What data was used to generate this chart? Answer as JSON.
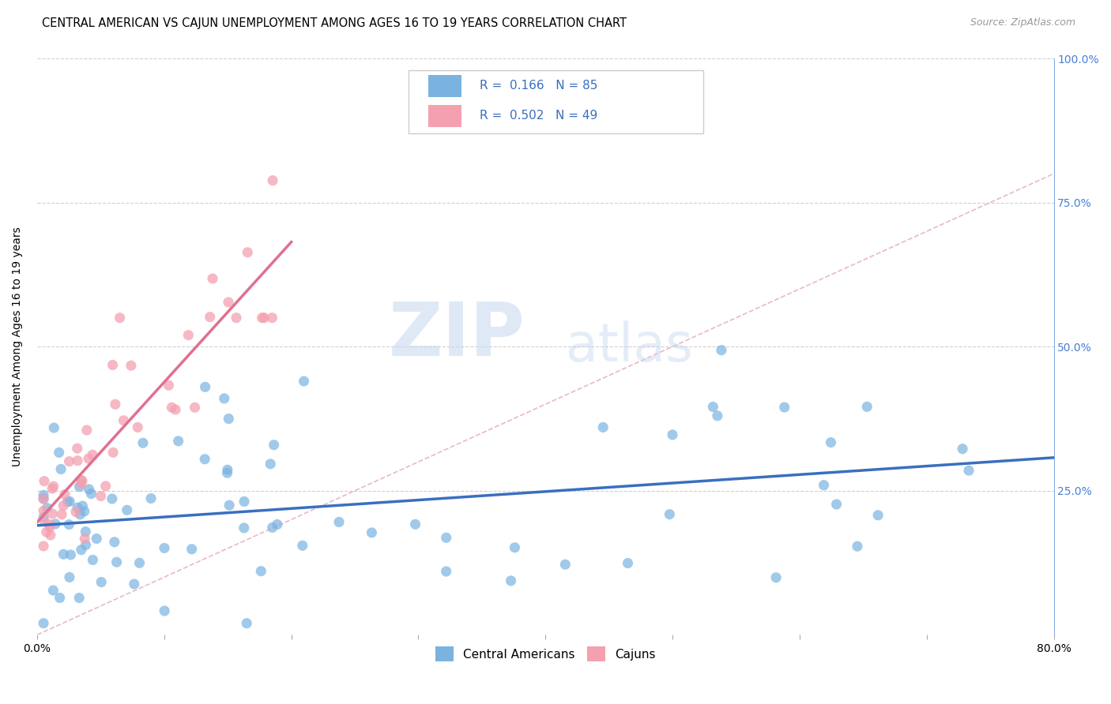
{
  "title": "CENTRAL AMERICAN VS CAJUN UNEMPLOYMENT AMONG AGES 16 TO 19 YEARS CORRELATION CHART",
  "source": "Source: ZipAtlas.com",
  "ylabel": "Unemployment Among Ages 16 to 19 years",
  "xlim": [
    0.0,
    0.8
  ],
  "ylim": [
    0.0,
    1.0
  ],
  "blue_R": "0.166",
  "blue_N": "85",
  "pink_R": "0.502",
  "pink_N": "49",
  "blue_color": "#7ab3e0",
  "pink_color": "#f4a0b0",
  "blue_line_color": "#3a6fbf",
  "pink_line_color": "#e07090",
  "diagonal_line_color": "#e8b0c0",
  "watermark_zip": "ZIP",
  "watermark_atlas": "atlas",
  "title_fontsize": 10.5,
  "axis_fontsize": 10,
  "tick_fontsize": 10,
  "background_color": "#ffffff",
  "legend_text_color": "#3a6fbf",
  "right_axis_color": "#4a7fd4"
}
